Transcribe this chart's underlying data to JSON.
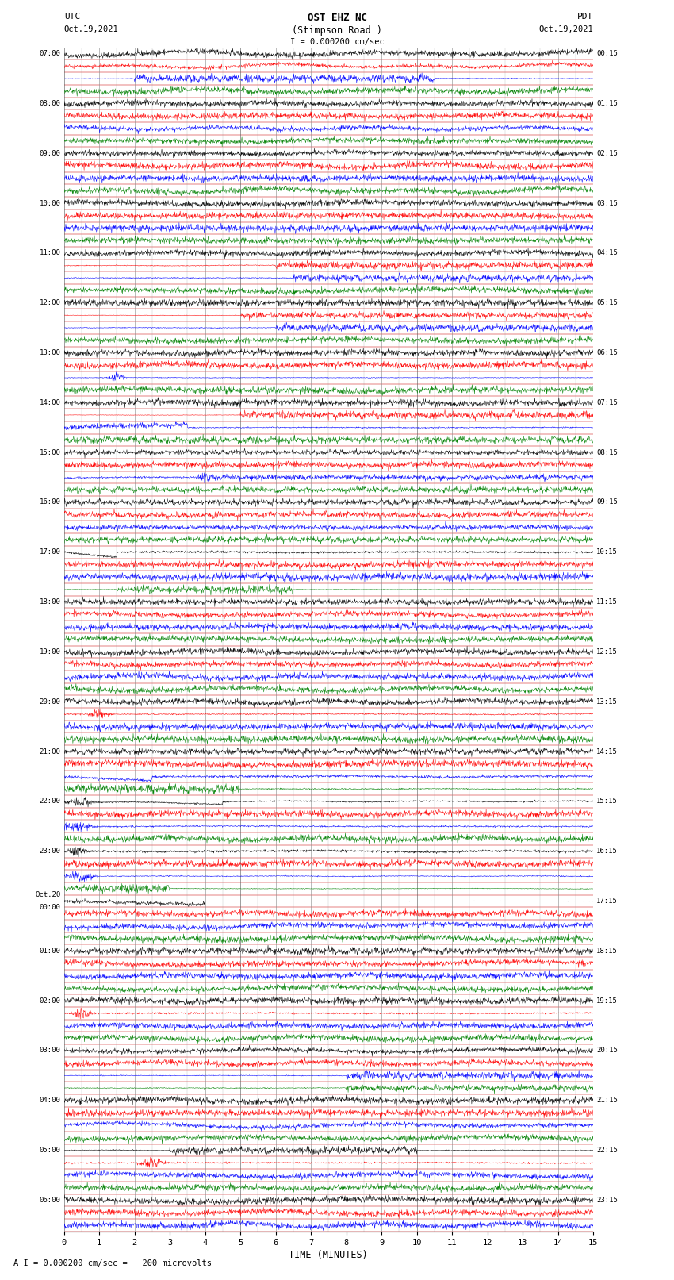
{
  "title_line1": "OST EHZ NC",
  "title_line2": "(Stimpson Road )",
  "scale_label": "I = 0.000200 cm/sec",
  "left_label_top": "UTC",
  "left_label_date": "Oct.19,2021",
  "right_label_top": "PDT",
  "right_label_date": "Oct.19,2021",
  "bottom_label": "TIME (MINUTES)",
  "bottom_note": "A I = 0.000200 cm/sec =   200 microvolts",
  "x_min": 0,
  "x_max": 15,
  "colors_cycle": [
    "black",
    "red",
    "blue",
    "green"
  ],
  "background_color": "white",
  "fig_width": 8.5,
  "fig_height": 16.13,
  "dpi": 100,
  "left_times": [
    "07:00",
    "",
    "",
    "",
    "08:00",
    "",
    "",
    "",
    "09:00",
    "",
    "",
    "",
    "10:00",
    "",
    "",
    "",
    "11:00",
    "",
    "",
    "",
    "12:00",
    "",
    "",
    "",
    "13:00",
    "",
    "",
    "",
    "14:00",
    "",
    "",
    "",
    "15:00",
    "",
    "",
    "",
    "16:00",
    "",
    "",
    "",
    "17:00",
    "",
    "",
    "",
    "18:00",
    "",
    "",
    "",
    "19:00",
    "",
    "",
    "",
    "20:00",
    "",
    "",
    "",
    "21:00",
    "",
    "",
    "",
    "22:00",
    "",
    "",
    "",
    "23:00",
    "",
    "",
    "",
    "Oct.20\n00:00",
    "",
    "",
    "",
    "01:00",
    "",
    "",
    "",
    "02:00",
    "",
    "",
    "",
    "03:00",
    "",
    "",
    "",
    "04:00",
    "",
    "",
    "",
    "05:00",
    "",
    "",
    "",
    "06:00",
    "",
    ""
  ],
  "right_times": [
    "00:15",
    "",
    "",
    "",
    "01:15",
    "",
    "",
    "",
    "02:15",
    "",
    "",
    "",
    "03:15",
    "",
    "",
    "",
    "04:15",
    "",
    "",
    "",
    "05:15",
    "",
    "",
    "",
    "06:15",
    "",
    "",
    "",
    "07:15",
    "",
    "",
    "",
    "08:15",
    "",
    "",
    "",
    "09:15",
    "",
    "",
    "",
    "10:15",
    "",
    "",
    "",
    "11:15",
    "",
    "",
    "",
    "12:15",
    "",
    "",
    "",
    "13:15",
    "",
    "",
    "",
    "14:15",
    "",
    "",
    "",
    "15:15",
    "",
    "",
    "",
    "16:15",
    "",
    "",
    "",
    "17:15",
    "",
    "",
    "",
    "18:15",
    "",
    "",
    "",
    "19:15",
    "",
    "",
    "",
    "20:15",
    "",
    "",
    "",
    "21:15",
    "",
    "",
    "",
    "22:15",
    "",
    "",
    "",
    "23:15",
    "",
    ""
  ]
}
